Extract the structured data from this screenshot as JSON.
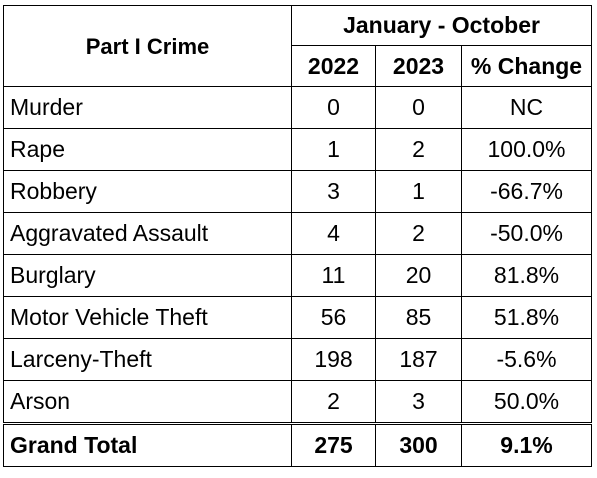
{
  "table": {
    "crime_header": "Part I Crime",
    "period_header": "January - October",
    "year1_header": "2022",
    "year2_header": "2023",
    "change_header": "% Change",
    "rows": [
      {
        "crime": "Murder",
        "y2022": "0",
        "y2023": "0",
        "change": "NC"
      },
      {
        "crime": "Rape",
        "y2022": "1",
        "y2023": "2",
        "change": "100.0%"
      },
      {
        "crime": "Robbery",
        "y2022": "3",
        "y2023": "1",
        "change": "-66.7%"
      },
      {
        "crime": "Aggravated Assault",
        "y2022": "4",
        "y2023": "2",
        "change": "-50.0%"
      },
      {
        "crime": "Burglary",
        "y2022": "11",
        "y2023": "20",
        "change": "81.8%"
      },
      {
        "crime": "Motor Vehicle Theft",
        "y2022": "56",
        "y2023": "85",
        "change": "51.8%"
      },
      {
        "crime": "Larceny-Theft",
        "y2022": "198",
        "y2023": "187",
        "change": "-5.6%"
      },
      {
        "crime": "Arson",
        "y2022": "2",
        "y2023": "3",
        "change": "50.0%"
      }
    ],
    "total": {
      "crime": "Grand Total",
      "y2022": "275",
      "y2023": "300",
      "change": "9.1%"
    }
  }
}
